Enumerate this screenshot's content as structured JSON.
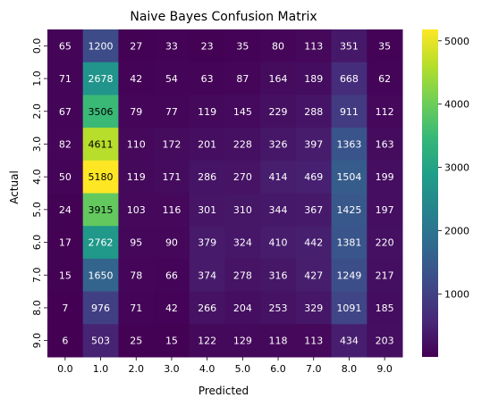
{
  "chart_data": {
    "type": "heatmap",
    "title": "Naive Bayes Confusion Matrix",
    "xlabel": "Predicted",
    "ylabel": "Actual",
    "x_categories": [
      "0.0",
      "1.0",
      "2.0",
      "3.0",
      "4.0",
      "5.0",
      "6.0",
      "7.0",
      "8.0",
      "9.0"
    ],
    "y_categories": [
      "0.0",
      "1.0",
      "2.0",
      "3.0",
      "4.0",
      "5.0",
      "6.0",
      "7.0",
      "8.0",
      "9.0"
    ],
    "values": [
      [
        65,
        1200,
        27,
        33,
        23,
        35,
        80,
        113,
        351,
        35
      ],
      [
        71,
        2678,
        42,
        54,
        63,
        87,
        164,
        189,
        668,
        62
      ],
      [
        67,
        3506,
        79,
        77,
        119,
        145,
        229,
        288,
        911,
        112
      ],
      [
        82,
        4611,
        110,
        172,
        201,
        228,
        326,
        397,
        1363,
        163
      ],
      [
        50,
        5180,
        119,
        171,
        286,
        270,
        414,
        469,
        1504,
        199
      ],
      [
        24,
        3915,
        103,
        116,
        301,
        310,
        344,
        367,
        1425,
        197
      ],
      [
        17,
        2762,
        95,
        90,
        379,
        324,
        410,
        442,
        1381,
        220
      ],
      [
        15,
        1650,
        78,
        66,
        374,
        278,
        316,
        427,
        1249,
        217
      ],
      [
        7,
        976,
        71,
        42,
        266,
        204,
        253,
        329,
        1091,
        185
      ],
      [
        6,
        503,
        25,
        15,
        122,
        129,
        118,
        113,
        434,
        203
      ]
    ],
    "colormap": "viridis",
    "colorbar": {
      "min": 6,
      "max": 5180,
      "ticks": [
        1000,
        2000,
        3000,
        4000,
        5000
      ]
    }
  }
}
